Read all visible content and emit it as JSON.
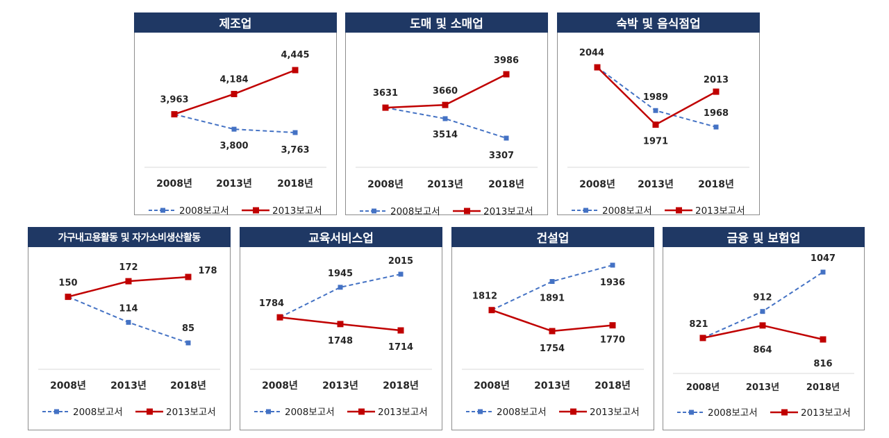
{
  "colors": {
    "s2008": "#4472c4",
    "s2013": "#c00000",
    "header": "#1f3864"
  },
  "legend_labels": [
    "2008보고서",
    "2013보고서"
  ],
  "chart_data": [
    {
      "type": "line",
      "title": "제조업",
      "categories": [
        "2008년",
        "2013년",
        "2018년"
      ],
      "ylim": [
        3600,
        4500
      ],
      "series": [
        {
          "name": "2008보고서",
          "values": [
            3963,
            3800,
            3763
          ],
          "labels": [
            "",
            "3,800",
            "3,763"
          ]
        },
        {
          "name": "2013보고서",
          "values": [
            3963,
            4184,
            4445
          ],
          "labels": [
            "3,963",
            "4,184",
            "4,445"
          ]
        }
      ]
    },
    {
      "type": "line",
      "title": "도매 및 소매업",
      "categories": [
        "2008년",
        "2013년",
        "2018년"
      ],
      "ylim": [
        3150,
        4050
      ],
      "series": [
        {
          "name": "2008보고서",
          "values": [
            3631,
            3514,
            3307
          ],
          "labels": [
            "",
            "3514",
            "3307"
          ]
        },
        {
          "name": "2013보고서",
          "values": [
            3631,
            3660,
            3986
          ],
          "labels": [
            "3631",
            "3660",
            "3986"
          ]
        }
      ]
    },
    {
      "type": "line",
      "title": "숙박 및 음식점업",
      "categories": [
        "2008년",
        "2013년",
        "2018년"
      ],
      "ylim": [
        1900,
        2060
      ],
      "series": [
        {
          "name": "2008보고서",
          "values": [
            2044,
            1989,
            1968
          ],
          "labels": [
            "",
            "1989",
            "1968"
          ]
        },
        {
          "name": "2013보고서",
          "values": [
            2044,
            1971,
            2013
          ],
          "labels": [
            "2044",
            "1971",
            "2013"
          ]
        }
      ]
    },
    {
      "type": "line",
      "title": "가구내고용활동 및 자가소비생산활동",
      "categories": [
        "2008년",
        "2013년",
        "2018년"
      ],
      "ylim": [
        20,
        200
      ],
      "series": [
        {
          "name": "2008보고서",
          "values": [
            150,
            114,
            85
          ],
          "labels": [
            "",
            "114",
            "85"
          ]
        },
        {
          "name": "2013보고서",
          "values": [
            150,
            172,
            178
          ],
          "labels": [
            "150",
            "172",
            "178"
          ]
        }
      ]
    },
    {
      "type": "line",
      "title": "교육서비스업",
      "categories": [
        "2008년",
        "2013년",
        "2018년"
      ],
      "ylim": [
        1600,
        2050
      ],
      "series": [
        {
          "name": "2008보고서",
          "values": [
            1784,
            1945,
            2015
          ],
          "labels": [
            "1784",
            "1945",
            "2015"
          ]
        },
        {
          "name": "2013보고서",
          "values": [
            1784,
            1748,
            1714
          ],
          "labels": [
            "",
            "1748",
            "1714"
          ]
        }
      ]
    },
    {
      "type": "line",
      "title": "건설업",
      "categories": [
        "2008년",
        "2013년",
        "2018년"
      ],
      "ylim": [
        1700,
        1950
      ],
      "series": [
        {
          "name": "2008보고서",
          "values": [
            1812,
            1891,
            1936
          ],
          "labels": [
            "1812",
            "1891",
            "1936"
          ]
        },
        {
          "name": "2013보고서",
          "values": [
            1812,
            1754,
            1770
          ],
          "labels": [
            "",
            "1754",
            "1770"
          ]
        }
      ]
    },
    {
      "type": "line",
      "title": "금융 및 보험업",
      "categories": [
        "2008년",
        "2013년",
        "2018년"
      ],
      "ylim": [
        700,
        1080
      ],
      "series": [
        {
          "name": "2008보고서",
          "values": [
            821,
            912,
            1047
          ],
          "labels": [
            "821",
            "912",
            "1047"
          ]
        },
        {
          "name": "2013보고서",
          "values": [
            821,
            864,
            816
          ],
          "labels": [
            "",
            "864",
            "816"
          ]
        }
      ]
    }
  ]
}
